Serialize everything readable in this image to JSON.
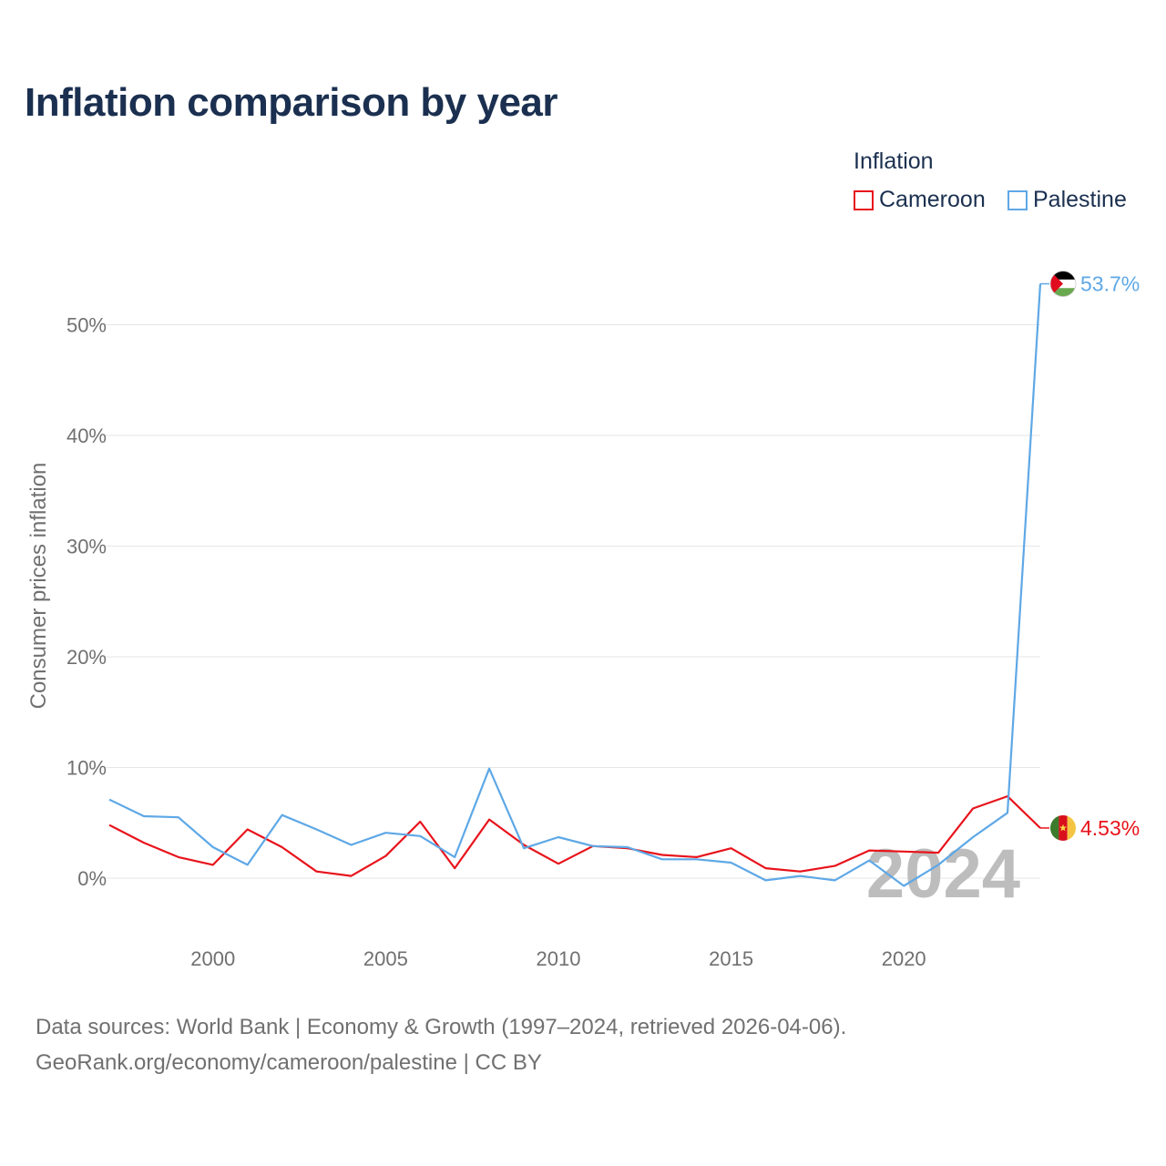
{
  "title": "Inflation comparison by year",
  "legend": {
    "title": "Inflation",
    "items": [
      {
        "label": "Cameroon",
        "color": "#e8131b"
      },
      {
        "label": "Palestine",
        "color": "#5ea8e6"
      }
    ]
  },
  "source": {
    "line1": "Data sources: World Bank | Economy & Growth (1997–2024, retrieved 2026-04-06).",
    "line2": "GeoRank.org/economy/cameroon/palestine | CC BY"
  },
  "chart_data": {
    "type": "line",
    "title": "Inflation comparison by year",
    "xlabel": "",
    "ylabel": "Consumer prices inflation",
    "xlim": [
      1997,
      2024
    ],
    "ylim": [
      -5,
      55
    ],
    "x_ticks": [
      2000,
      2005,
      2010,
      2015,
      2020
    ],
    "y_ticks": [
      0,
      10,
      20,
      30,
      40,
      50
    ],
    "y_tick_labels": [
      "0%",
      "10%",
      "20%",
      "30%",
      "40%",
      "50%"
    ],
    "grid": true,
    "watermark": "2024",
    "x": [
      1997,
      1998,
      1999,
      2000,
      2001,
      2002,
      2003,
      2004,
      2005,
      2006,
      2007,
      2008,
      2009,
      2010,
      2011,
      2012,
      2013,
      2014,
      2015,
      2016,
      2017,
      2018,
      2019,
      2020,
      2021,
      2022,
      2023,
      2024
    ],
    "series": [
      {
        "name": "Cameroon",
        "color": "#e8131b",
        "end_label": "4.53%",
        "values": [
          4.8,
          3.2,
          1.9,
          1.2,
          4.4,
          2.8,
          0.6,
          0.2,
          2.0,
          5.1,
          0.9,
          5.3,
          3.0,
          1.3,
          2.9,
          2.7,
          2.1,
          1.9,
          2.7,
          0.9,
          0.6,
          1.1,
          2.5,
          2.4,
          2.3,
          6.3,
          7.4,
          4.53
        ]
      },
      {
        "name": "Palestine",
        "color": "#5ea8e6",
        "end_label": "53.7%",
        "values": [
          7.1,
          5.6,
          5.5,
          2.8,
          1.2,
          5.7,
          4.4,
          3.0,
          4.1,
          3.8,
          1.9,
          9.9,
          2.7,
          3.7,
          2.9,
          2.8,
          1.7,
          1.7,
          1.4,
          -0.2,
          0.2,
          -0.2,
          1.6,
          -0.7,
          1.2,
          3.7,
          5.9,
          53.7
        ]
      }
    ]
  }
}
